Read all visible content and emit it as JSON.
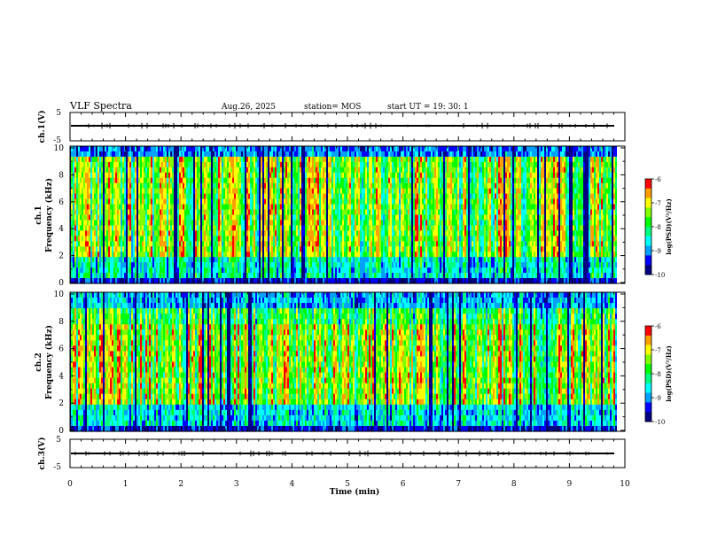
{
  "header": {
    "title": "VLF Spectra",
    "date": "Aug.26, 2025",
    "station": "station= MOS",
    "start_ut": "start  UT =   19: 30: 1"
  },
  "chart_data": [
    {
      "type": "line",
      "name": "ch1-waveform",
      "ylabel": "ch.1(V)",
      "ylim": [
        -5,
        5
      ],
      "yticks": [
        "5",
        "-5"
      ],
      "level": 0,
      "xlim": [
        0,
        10
      ],
      "xticks": [
        "0",
        "1",
        "2",
        "3",
        "4",
        "5",
        "6",
        "7",
        "8",
        "9",
        "10"
      ]
    },
    {
      "type": "heatmap",
      "name": "ch1-spectrogram",
      "ylabel": "ch.1\nFrequency (kHz)",
      "ylim": [
        0,
        10
      ],
      "yticks": [
        "0",
        "2",
        "4",
        "6",
        "8",
        "10"
      ],
      "xlim": [
        0,
        9.85
      ],
      "colorbar": {
        "label": "log(PSD)(V²/Hz)",
        "range": [
          -10,
          -6
        ],
        "ticks": [
          "-6",
          "-7",
          "-8",
          "-9",
          "-10"
        ]
      }
    },
    {
      "type": "heatmap",
      "name": "ch2-spectrogram",
      "ylabel": "ch.2\nFrequency (kHz)",
      "ylim": [
        0,
        10
      ],
      "yticks": [
        "0",
        "2",
        "4",
        "6",
        "8",
        "10"
      ],
      "xlim": [
        0,
        9.85
      ],
      "colorbar": {
        "label": "log(PSD)(V²/Hz)",
        "range": [
          -10,
          -6
        ],
        "ticks": [
          "-6",
          "-7",
          "-8",
          "-9",
          "-10"
        ]
      }
    },
    {
      "type": "line",
      "name": "ch3-waveform",
      "ylabel": "ch.3(V)",
      "ylim": [
        -5,
        5
      ],
      "yticks": [
        "5",
        "-5"
      ],
      "level": 0,
      "xlabel": "Time  (min)",
      "xlim": [
        0,
        10
      ],
      "xticks": [
        "0",
        "1",
        "2",
        "3",
        "4",
        "5",
        "6",
        "7",
        "8",
        "9",
        "10"
      ]
    }
  ],
  "colors": {
    "colormap": [
      "#000080",
      "#0000ff",
      "#00a0ff",
      "#00ffff",
      "#00ff80",
      "#00ff00",
      "#80ff00",
      "#ffff00",
      "#ffa000",
      "#ff0000",
      "#ffffff"
    ]
  }
}
